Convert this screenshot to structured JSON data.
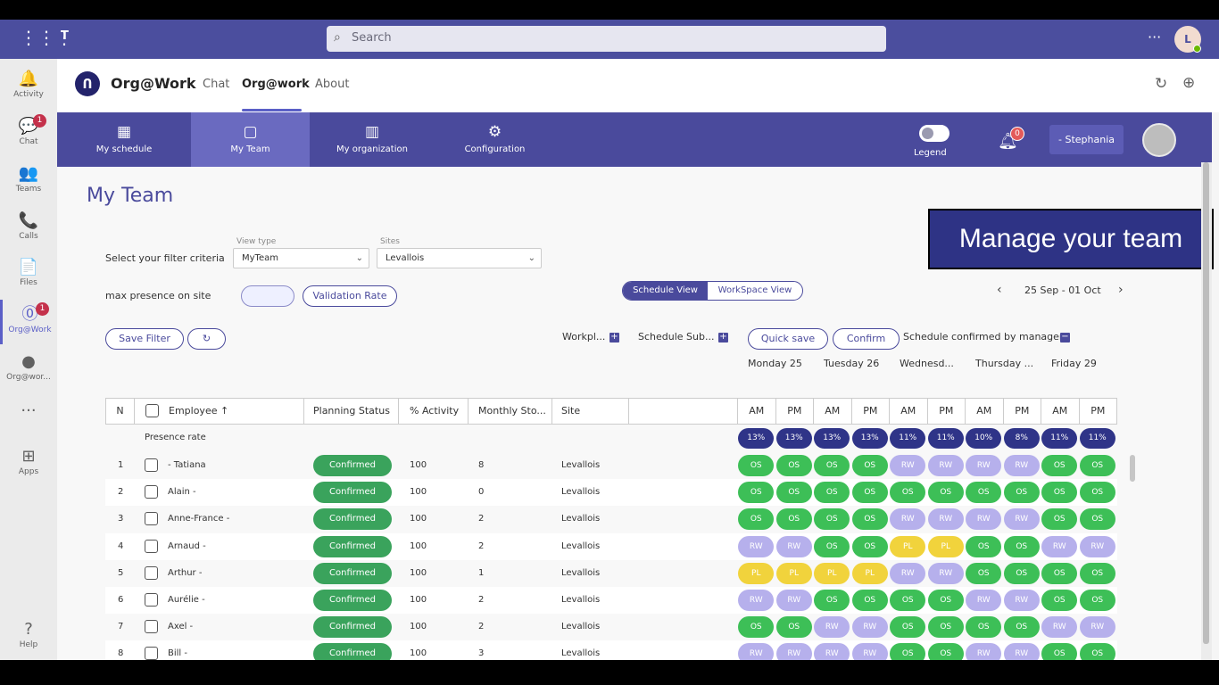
{
  "teams": {
    "search_placeholder": "Search",
    "more": "···",
    "me_initial": "L"
  },
  "rail": {
    "items": [
      {
        "label": "Activity",
        "icon": "bell-icon",
        "glyph": "🔔",
        "badge": ""
      },
      {
        "label": "Chat",
        "icon": "chat-icon",
        "glyph": "💬",
        "badge": "1"
      },
      {
        "label": "Teams",
        "icon": "teams-icon",
        "glyph": "👥",
        "badge": ""
      },
      {
        "label": "Calls",
        "icon": "phone-icon",
        "glyph": "📞",
        "badge": ""
      },
      {
        "label": "Files",
        "icon": "file-icon",
        "glyph": "📄",
        "badge": ""
      },
      {
        "label": "Org@Work",
        "icon": "orgwork-icon",
        "glyph": "⓪",
        "badge": "1"
      },
      {
        "label": "Org@wor...",
        "icon": "orgwork-icon",
        "glyph": "●",
        "badge": ""
      },
      {
        "label": "",
        "icon": "more-icon",
        "glyph": "···",
        "badge": ""
      },
      {
        "label": "Apps",
        "icon": "apps-icon",
        "glyph": "⊞",
        "badge": ""
      }
    ],
    "help": "Help"
  },
  "app": {
    "name": "Org@Work",
    "tabs": [
      "Chat",
      "Org@work",
      "About"
    ]
  },
  "nav": {
    "items": [
      "My schedule",
      "My Team",
      "My organization",
      "Configuration"
    ],
    "legend": "Legend",
    "notif_count": "0",
    "user": "- Stephania"
  },
  "page": {
    "title": "My Team",
    "banner": "Manage your team",
    "filter_label": "Select your filter criteria",
    "view_type_caption": "View type",
    "view_type_value": "MyTeam",
    "sites_caption": "Sites",
    "sites_value": "Levallois",
    "max_presence_label": "max presence on site",
    "validation_rate": "Validation Rate",
    "schedule_view": "Schedule View",
    "workspace_view": "WorkSpace View",
    "week_range": "25 Sep - 01 Oct",
    "save_filter": "Save Filter",
    "workplace": "Workpl...",
    "schedule_sub": "Schedule Sub...",
    "quick_save": "Quick save",
    "confirm": "Confirm",
    "confirmed_by_manager": "Schedule confirmed by manager"
  },
  "days": [
    "Monday 25",
    "Tuesday 26",
    "Wednesd...",
    "Thursday ...",
    "Friday 29"
  ],
  "table": {
    "headers": {
      "n": "N",
      "employee": "Employee ↑",
      "planning": "Planning Status",
      "activity": "% Activity",
      "monthly": "Monthly Sto...",
      "site": "Site",
      "am": "AM",
      "pm": "PM"
    },
    "presence_label": "Presence rate",
    "presence_rates": [
      "13%",
      "13%",
      "13%",
      "13%",
      "11%",
      "11%",
      "10%",
      "8%",
      "11%",
      "11%"
    ],
    "rows": [
      {
        "n": "1",
        "name": "- Tatiana",
        "status": "Confirmed",
        "activity": "100",
        "monthly": "8",
        "site": "Levallois",
        "slots": [
          "OS",
          "OS",
          "OS",
          "OS",
          "RW",
          "RW",
          "RW",
          "RW",
          "OS",
          "OS"
        ]
      },
      {
        "n": "2",
        "name": "Alain -",
        "status": "Confirmed",
        "activity": "100",
        "monthly": "0",
        "site": "Levallois",
        "slots": [
          "OS",
          "OS",
          "OS",
          "OS",
          "OS",
          "OS",
          "OS",
          "OS",
          "OS",
          "OS"
        ]
      },
      {
        "n": "3",
        "name": "Anne-France -",
        "status": "Confirmed",
        "activity": "100",
        "monthly": "2",
        "site": "Levallois",
        "slots": [
          "OS",
          "OS",
          "OS",
          "OS",
          "RW",
          "RW",
          "RW",
          "RW",
          "OS",
          "OS"
        ]
      },
      {
        "n": "4",
        "name": "Arnaud -",
        "status": "Confirmed",
        "activity": "100",
        "monthly": "2",
        "site": "Levallois",
        "slots": [
          "RW",
          "RW",
          "OS",
          "OS",
          "PL",
          "PL",
          "OS",
          "OS",
          "RW",
          "RW"
        ]
      },
      {
        "n": "5",
        "name": "Arthur -",
        "status": "Confirmed",
        "activity": "100",
        "monthly": "1",
        "site": "Levallois",
        "slots": [
          "PL",
          "PL",
          "PL",
          "PL",
          "RW",
          "RW",
          "OS",
          "OS",
          "OS",
          "OS"
        ]
      },
      {
        "n": "6",
        "name": "Aurélie -",
        "status": "Confirmed",
        "activity": "100",
        "monthly": "2",
        "site": "Levallois",
        "slots": [
          "RW",
          "RW",
          "OS",
          "OS",
          "OS",
          "OS",
          "RW",
          "RW",
          "OS",
          "OS"
        ]
      },
      {
        "n": "7",
        "name": "Axel -",
        "status": "Confirmed",
        "activity": "100",
        "monthly": "2",
        "site": "Levallois",
        "slots": [
          "OS",
          "OS",
          "RW",
          "RW",
          "OS",
          "OS",
          "OS",
          "OS",
          "RW",
          "RW"
        ]
      },
      {
        "n": "8",
        "name": "Bill -",
        "status": "Confirmed",
        "activity": "100",
        "monthly": "3",
        "site": "Levallois",
        "slots": [
          "RW",
          "RW",
          "RW",
          "RW",
          "OS",
          "OS",
          "RW",
          "RW",
          "OS",
          "OS"
        ]
      }
    ]
  },
  "colors": {
    "teams_bar": "#4b4e9e",
    "app_nav": "#4a4a9c",
    "OS": "#3dbf57",
    "RW": "#b6b0ec",
    "PL": "#f1d33c",
    "confirmed": "#3aa35c"
  }
}
